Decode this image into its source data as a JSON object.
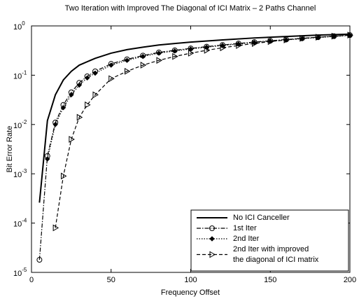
{
  "chart_data": {
    "type": "line",
    "title": "Two Iteration with Improved The Diagonal of ICI Matrix – 2 Paths Channel",
    "xlabel": "Frequency Offset",
    "ylabel": "Bit Error Rate",
    "xlim": [
      0,
      200
    ],
    "xticks": [
      0,
      50,
      100,
      150,
      200
    ],
    "ylim": [
      1e-05,
      1
    ],
    "yscale": "log",
    "yticks": [
      {
        "value": 1e-05,
        "label": "10",
        "exponent": "-5"
      },
      {
        "value": 0.0001,
        "label": "10",
        "exponent": "-4"
      },
      {
        "value": 0.001,
        "label": "10",
        "exponent": "-3"
      },
      {
        "value": 0.01,
        "label": "10",
        "exponent": "-2"
      },
      {
        "value": 0.1,
        "label": "10",
        "exponent": "-1"
      },
      {
        "value": 1,
        "label": "10",
        "exponent": "0"
      }
    ],
    "grid": false,
    "legend": "lower right",
    "series": [
      {
        "name": [
          "No ICI Canceller"
        ],
        "color": "#000000",
        "dash": "solid",
        "marker": "none",
        "x": [
          5,
          10,
          15,
          20,
          25,
          30,
          40,
          50,
          60,
          70,
          80,
          90,
          100,
          120,
          140,
          160,
          180,
          200
        ],
        "values": [
          0.00026,
          0.012,
          0.04,
          0.08,
          0.12,
          0.16,
          0.22,
          0.28,
          0.33,
          0.37,
          0.41,
          0.44,
          0.47,
          0.52,
          0.57,
          0.61,
          0.65,
          0.68
        ]
      },
      {
        "name": [
          "1st Iter"
        ],
        "color": "#000000",
        "dash": "dashdot",
        "marker": "circle",
        "x": [
          5,
          10,
          15,
          20,
          25,
          30,
          35,
          40,
          50,
          60,
          70,
          80,
          90,
          100,
          110,
          120,
          130,
          140,
          150,
          160,
          170,
          180,
          190,
          200
        ],
        "values": [
          1.8e-05,
          0.0023,
          0.011,
          0.025,
          0.045,
          0.07,
          0.095,
          0.12,
          0.17,
          0.21,
          0.25,
          0.29,
          0.32,
          0.35,
          0.38,
          0.41,
          0.44,
          0.47,
          0.5,
          0.53,
          0.56,
          0.59,
          0.62,
          0.65
        ]
      },
      {
        "name": [
          "2nd Iter"
        ],
        "color": "#000000",
        "dash": "dotted",
        "marker": "diamond",
        "x": [
          10,
          15,
          20,
          25,
          30,
          35,
          40,
          50,
          60,
          70,
          80,
          90,
          100,
          110,
          120,
          130,
          140,
          150,
          160,
          170,
          180,
          190,
          200
        ],
        "values": [
          0.002,
          0.01,
          0.022,
          0.04,
          0.063,
          0.088,
          0.11,
          0.16,
          0.2,
          0.24,
          0.28,
          0.31,
          0.34,
          0.37,
          0.4,
          0.43,
          0.46,
          0.49,
          0.52,
          0.55,
          0.58,
          0.61,
          0.64
        ]
      },
      {
        "name": [
          "2nd Iter with improved",
          "the diagonal of ICI matrix"
        ],
        "color": "#000000",
        "dash": "dashed",
        "marker": "triangle",
        "x": [
          15,
          20,
          25,
          30,
          35,
          40,
          50,
          60,
          70,
          80,
          90,
          100,
          110,
          120,
          130,
          140,
          150,
          160,
          170,
          180,
          190,
          200
        ],
        "values": [
          8e-05,
          0.0009,
          0.005,
          0.014,
          0.025,
          0.04,
          0.085,
          0.12,
          0.16,
          0.2,
          0.24,
          0.28,
          0.32,
          0.36,
          0.4,
          0.44,
          0.48,
          0.52,
          0.56,
          0.59,
          0.62,
          0.65
        ]
      }
    ]
  }
}
